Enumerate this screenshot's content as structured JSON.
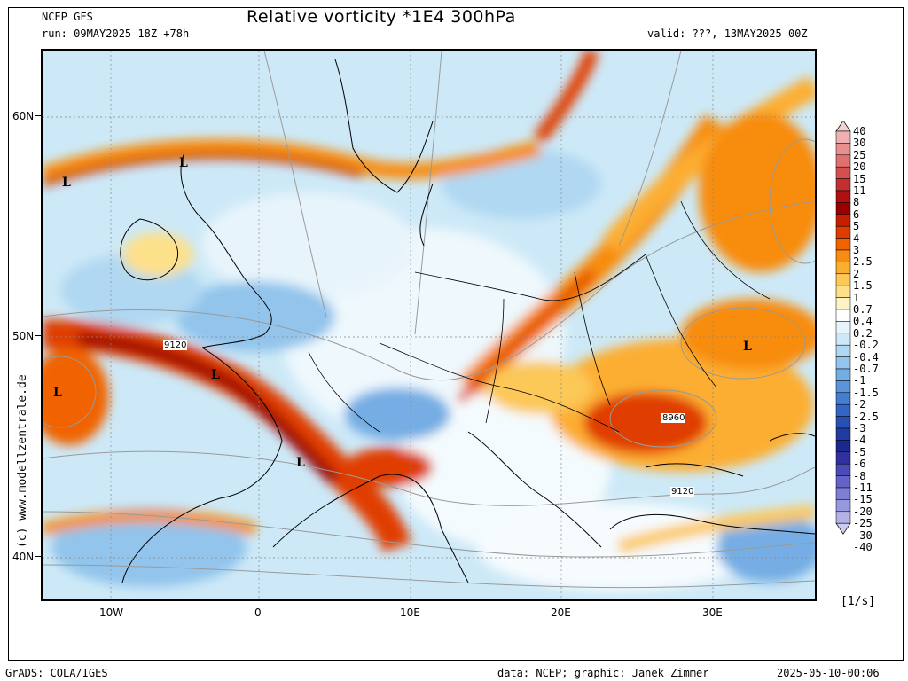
{
  "header": {
    "model": "NCEP GFS",
    "title": "Relative vorticity *1E4 300hPa",
    "run": "run: 09MAY2025 18Z +78h",
    "valid": "valid: ???, 13MAY2025 00Z"
  },
  "axes": {
    "lat_labels": [
      "60N",
      "50N",
      "40N"
    ],
    "lon_labels": [
      "10W",
      "0",
      "10E",
      "20E",
      "30E"
    ]
  },
  "map_labels": {
    "lows": [
      "L",
      "L",
      "L",
      "L",
      "L",
      "L"
    ],
    "contours": [
      "9120",
      "8960",
      "9120"
    ]
  },
  "colorbar": {
    "unit": "[1/s]",
    "levels": [
      "40",
      "30",
      "25",
      "20",
      "15",
      "11",
      "8",
      "6",
      "5",
      "4",
      "3",
      "2.5",
      "2",
      "1.5",
      "1",
      "0.7",
      "0.4",
      "0.2",
      "-0.2",
      "-0.4",
      "-0.7",
      "-1",
      "-1.5",
      "-2",
      "-2.5",
      "-3",
      "-4",
      "-5",
      "-6",
      "-8",
      "-11",
      "-15",
      "-20",
      "-25",
      "-30",
      "-40"
    ],
    "colors": [
      "#f4d2d2",
      "#eeb0b0",
      "#e89090",
      "#e07070",
      "#d45050",
      "#c43030",
      "#b01010",
      "#9a0000",
      "#c81e00",
      "#e03c00",
      "#f06400",
      "#f88c10",
      "#fcae30",
      "#fcc858",
      "#fde08a",
      "#fef3c4",
      "#ffffff",
      "#e8f4fb",
      "#cde9f7",
      "#b0d8f2",
      "#92c4ec",
      "#74ade4",
      "#5a94da",
      "#447ed0",
      "#3366c4",
      "#2850b4",
      "#203ca0",
      "#1a2a8c",
      "#3030a0",
      "#4a4ab8",
      "#6464c8",
      "#7e7ed4",
      "#9898de",
      "#b2b2e8",
      "#ccccf0"
    ]
  },
  "copyright": "(c) www.modellzentrale.de",
  "footer": {
    "left": "GrADS: COLA/IGES",
    "center": "data: NCEP; graphic: Janek Zimmer",
    "right": "2025-05-10-00:06"
  }
}
